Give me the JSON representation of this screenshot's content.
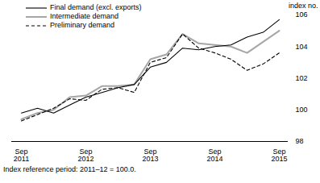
{
  "chart_data": {
    "type": "line",
    "categories": [
      "Sep\n2011",
      null,
      null,
      null,
      "Sep\n2012",
      null,
      null,
      null,
      "Sep\n2013",
      null,
      null,
      null,
      "Sep\n2014",
      null,
      null,
      null,
      "Sep\n2015"
    ],
    "series": [
      {
        "name": "Final demand (excl. exports)",
        "color": "#000000",
        "line_style": "solid",
        "values": [
          99.8,
          100.1,
          99.8,
          100.3,
          100.8,
          101.1,
          101.4,
          101.6,
          102.7,
          103.0,
          103.9,
          103.8,
          104.0,
          104.1,
          104.6,
          104.9,
          105.7
        ]
      },
      {
        "name": "Intermediate demand",
        "color": "#a6a6a6",
        "line_style": "solid",
        "values": [
          99.4,
          99.8,
          100.0,
          100.8,
          100.9,
          101.5,
          101.5,
          101.6,
          103.2,
          103.5,
          104.8,
          104.2,
          104.1,
          104.0,
          103.6,
          104.3,
          105.0
        ]
      },
      {
        "name": "Preliminary demand",
        "color": "#000000",
        "line_style": "dashed",
        "values": [
          99.3,
          99.7,
          100.1,
          100.7,
          100.6,
          101.3,
          101.4,
          101.1,
          103.0,
          103.3,
          104.8,
          103.9,
          103.6,
          103.2,
          102.5,
          102.9,
          103.6
        ]
      }
    ],
    "y_label": "index no.",
    "caption": "Index reference period: 2011–12 = 100.0.",
    "ylim": [
      98,
      106
    ],
    "yticks": [
      98,
      100,
      102,
      104,
      106
    ],
    "grid": false,
    "legend": "top-left"
  }
}
